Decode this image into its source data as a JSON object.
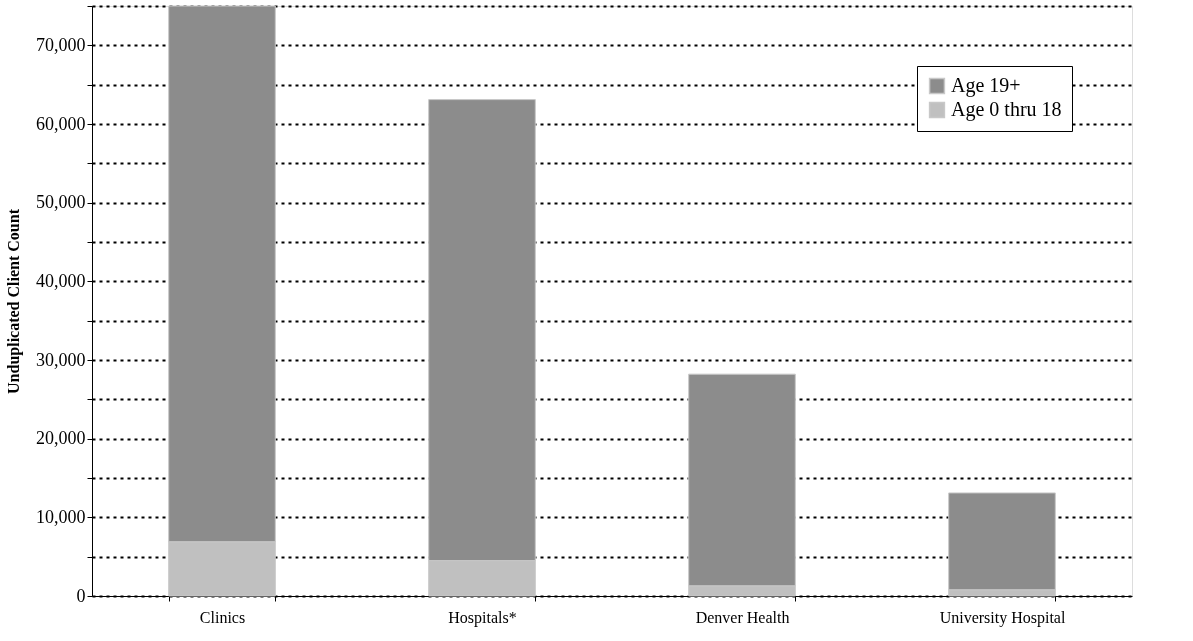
{
  "chart_data": {
    "type": "bar",
    "stacked": true,
    "ylabel": "Unduplicated Client Count",
    "categories": [
      "Clinics",
      "Hospitals*",
      "Denver Health",
      "University Hospital"
    ],
    "series": [
      {
        "name": "Age 0 thru 18",
        "color": "#c0c0c0",
        "values": [
          6900,
          4500,
          1300,
          800
        ]
      },
      {
        "name": "Age 19+",
        "color": "#8c8c8c",
        "values": [
          68100,
          58600,
          26900,
          12300
        ]
      }
    ],
    "ylim": [
      0,
      75000
    ],
    "yticks": [
      0,
      {
        "value": 5000,
        "label": null
      },
      {
        "value": 10000,
        "label": "10,000"
      },
      {
        "value": 15000,
        "label": null
      },
      {
        "value": 20000,
        "label": "20,000"
      },
      {
        "value": 25000,
        "label": null
      },
      {
        "value": 30000,
        "label": "30,000"
      },
      {
        "value": 35000,
        "label": null
      },
      {
        "value": 40000,
        "label": "40,000"
      },
      {
        "value": 45000,
        "label": null
      },
      {
        "value": 50000,
        "label": "50,000"
      },
      {
        "value": 55000,
        "label": null
      },
      {
        "value": 60000,
        "label": "60,000"
      },
      {
        "value": 65000,
        "label": null
      },
      {
        "value": 70000,
        "label": "70,000"
      },
      {
        "value": 75000,
        "label": null
      }
    ],
    "grid": "y",
    "legend": "top right"
  }
}
